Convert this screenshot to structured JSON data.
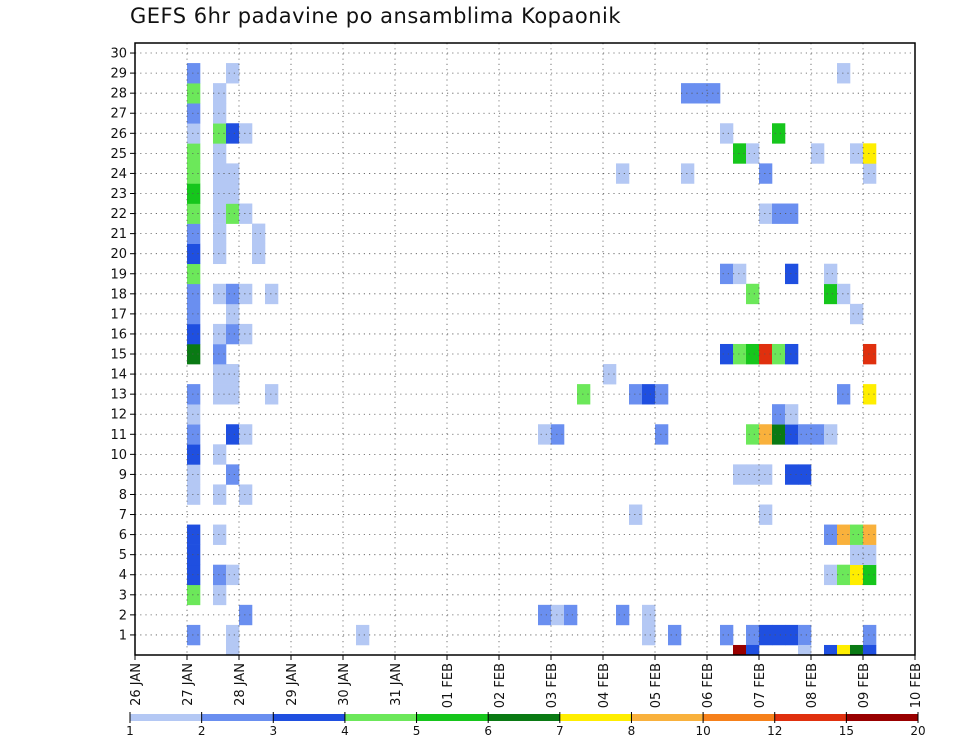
{
  "chart_data": {
    "type": "heatmap",
    "title": "GEFS 6hr padavine po ansamblima Kopaonik",
    "xlabel": "",
    "ylabel": "",
    "x_ticks": [
      "26 JAN",
      "27 JAN",
      "28 JAN",
      "29 JAN",
      "30 JAN",
      "31 JAN",
      "01 FEB",
      "02 FEB",
      "03 FEB",
      "04 FEB",
      "05 FEB",
      "06 FEB",
      "07 FEB",
      "08 FEB",
      "09 FEB",
      "10 FEB"
    ],
    "x_range": [
      "26 JAN 00Z",
      "10 FEB 00Z"
    ],
    "steps_per_day": 4,
    "y_ticks": [
      1,
      2,
      3,
      4,
      5,
      6,
      7,
      8,
      9,
      10,
      11,
      12,
      13,
      14,
      15,
      16,
      17,
      18,
      19,
      20,
      21,
      22,
      23,
      24,
      25,
      26,
      27,
      28,
      29,
      30
    ],
    "y_range": [
      0,
      30
    ],
    "grid": true,
    "colorbar": {
      "labels": [
        "1",
        "2",
        "3",
        "4",
        "5",
        "6",
        "7",
        "8",
        "10",
        "12",
        "15",
        "20"
      ],
      "colors": [
        "#b4c8f4",
        "#6a8ff0",
        "#1f4fe0",
        "#6ce85a",
        "#16c61c",
        "#0a7a14",
        "#ffee00",
        "#f9b13c",
        "#f6801a",
        "#e0300e",
        "#990000"
      ]
    },
    "member_cells": [
      {
        "member": 1,
        "steps": [
          [
            4,
            1
          ],
          [
            7,
            0
          ],
          [
            17,
            0
          ],
          [
            39,
            0
          ],
          [
            41,
            1
          ],
          [
            45,
            1
          ],
          [
            47,
            1
          ],
          [
            48,
            2
          ],
          [
            49,
            2
          ],
          [
            50,
            2
          ],
          [
            51,
            1
          ],
          [
            56,
            1
          ]
        ]
      },
      {
        "member": 2,
        "steps": [
          [
            8,
            1
          ],
          [
            31,
            1
          ],
          [
            32,
            0
          ],
          [
            33,
            1
          ],
          [
            37,
            1
          ],
          [
            39,
            0
          ]
        ]
      },
      {
        "member": 3,
        "steps": [
          [
            4,
            3
          ],
          [
            6,
            0
          ]
        ]
      },
      {
        "member": 4,
        "steps": [
          [
            4,
            2
          ],
          [
            6,
            1
          ],
          [
            7,
            0
          ],
          [
            53,
            0
          ],
          [
            54,
            3
          ],
          [
            55,
            6
          ],
          [
            56,
            4
          ]
        ]
      },
      {
        "member": 5,
        "steps": [
          [
            4,
            2
          ],
          [
            55,
            0
          ],
          [
            56,
            0
          ]
        ]
      },
      {
        "member": 6,
        "steps": [
          [
            4,
            2
          ],
          [
            6,
            0
          ],
          [
            53,
            1
          ],
          [
            54,
            7
          ],
          [
            55,
            3
          ],
          [
            56,
            7
          ]
        ]
      },
      {
        "member": 7,
        "steps": [
          [
            38,
            0
          ],
          [
            48,
            0
          ]
        ]
      },
      {
        "member": 8,
        "steps": [
          [
            4,
            0
          ],
          [
            6,
            0
          ],
          [
            8,
            0
          ]
        ]
      },
      {
        "member": 9,
        "steps": [
          [
            4,
            0
          ],
          [
            7,
            1
          ],
          [
            46,
            0
          ],
          [
            47,
            0
          ],
          [
            48,
            0
          ],
          [
            50,
            2
          ],
          [
            51,
            2
          ]
        ]
      },
      {
        "member": 10,
        "steps": [
          [
            4,
            2
          ],
          [
            6,
            0
          ]
        ]
      },
      {
        "member": 11,
        "steps": [
          [
            4,
            1
          ],
          [
            7,
            2
          ],
          [
            8,
            0
          ],
          [
            31,
            0
          ],
          [
            32,
            1
          ],
          [
            40,
            1
          ],
          [
            47,
            3
          ],
          [
            48,
            7
          ],
          [
            49,
            5
          ],
          [
            50,
            2
          ],
          [
            51,
            1
          ],
          [
            52,
            1
          ],
          [
            53,
            0
          ]
        ]
      },
      {
        "member": 12,
        "steps": [
          [
            4,
            0
          ],
          [
            49,
            1
          ],
          [
            50,
            0
          ]
        ]
      },
      {
        "member": 13,
        "steps": [
          [
            4,
            1
          ],
          [
            6,
            0
          ],
          [
            7,
            0
          ],
          [
            10,
            0
          ],
          [
            34,
            3
          ],
          [
            38,
            1
          ],
          [
            39,
            2
          ],
          [
            40,
            1
          ],
          [
            54,
            1
          ],
          [
            56,
            6
          ]
        ]
      },
      {
        "member": 14,
        "steps": [
          [
            6,
            0
          ],
          [
            7,
            0
          ],
          [
            36,
            0
          ]
        ]
      },
      {
        "member": 15,
        "steps": [
          [
            4,
            5
          ],
          [
            6,
            1
          ],
          [
            45,
            2
          ],
          [
            46,
            3
          ],
          [
            47,
            4
          ],
          [
            48,
            9
          ],
          [
            49,
            3
          ],
          [
            50,
            2
          ],
          [
            56,
            9
          ]
        ]
      },
      {
        "member": 16,
        "steps": [
          [
            4,
            2
          ],
          [
            6,
            0
          ],
          [
            7,
            1
          ],
          [
            8,
            0
          ]
        ]
      },
      {
        "member": 17,
        "steps": [
          [
            4,
            1
          ],
          [
            7,
            0
          ],
          [
            55,
            0
          ]
        ]
      },
      {
        "member": 18,
        "steps": [
          [
            4,
            1
          ],
          [
            6,
            0
          ],
          [
            7,
            1
          ],
          [
            8,
            0
          ],
          [
            10,
            0
          ],
          [
            47,
            3
          ],
          [
            53,
            4
          ],
          [
            54,
            0
          ]
        ]
      },
      {
        "member": 19,
        "steps": [
          [
            4,
            3
          ],
          [
            45,
            1
          ],
          [
            46,
            0
          ],
          [
            50,
            2
          ],
          [
            53,
            0
          ]
        ]
      },
      {
        "member": 20,
        "steps": [
          [
            4,
            2
          ],
          [
            6,
            0
          ],
          [
            9,
            0
          ]
        ]
      },
      {
        "member": 21,
        "steps": [
          [
            4,
            1
          ],
          [
            6,
            0
          ],
          [
            9,
            0
          ]
        ]
      },
      {
        "member": 22,
        "steps": [
          [
            4,
            3
          ],
          [
            6,
            0
          ],
          [
            7,
            3
          ],
          [
            8,
            0
          ],
          [
            48,
            0
          ],
          [
            49,
            1
          ],
          [
            50,
            1
          ]
        ]
      },
      {
        "member": 23,
        "steps": [
          [
            4,
            4
          ],
          [
            6,
            0
          ],
          [
            7,
            0
          ]
        ]
      },
      {
        "member": 24,
        "steps": [
          [
            4,
            3
          ],
          [
            6,
            0
          ],
          [
            7,
            0
          ],
          [
            37,
            0
          ],
          [
            42,
            0
          ],
          [
            48,
            1
          ],
          [
            56,
            0
          ]
        ]
      },
      {
        "member": 25,
        "steps": [
          [
            4,
            3
          ],
          [
            6,
            0
          ],
          [
            46,
            4
          ],
          [
            47,
            0
          ],
          [
            52,
            0
          ],
          [
            55,
            0
          ],
          [
            56,
            6
          ]
        ]
      },
      {
        "member": 26,
        "steps": [
          [
            4,
            0
          ],
          [
            6,
            3
          ],
          [
            7,
            2
          ],
          [
            8,
            0
          ],
          [
            45,
            0
          ],
          [
            49,
            4
          ]
        ]
      },
      {
        "member": 27,
        "steps": [
          [
            4,
            1
          ],
          [
            6,
            0
          ]
        ]
      },
      {
        "member": 28,
        "steps": [
          [
            4,
            3
          ],
          [
            6,
            0
          ],
          [
            42,
            1
          ],
          [
            43,
            1
          ],
          [
            44,
            1
          ]
        ]
      },
      {
        "member": 29,
        "steps": [
          [
            4,
            1
          ],
          [
            7,
            0
          ],
          [
            54,
            0
          ]
        ]
      },
      {
        "member": 30,
        "steps": []
      },
      {
        "member": 0,
        "steps": [
          [
            7,
            0
          ],
          [
            46,
            10
          ],
          [
            47,
            2
          ],
          [
            51,
            0
          ],
          [
            53,
            2
          ],
          [
            54,
            6
          ],
          [
            55,
            5
          ],
          [
            56,
            2
          ]
        ]
      }
    ]
  }
}
